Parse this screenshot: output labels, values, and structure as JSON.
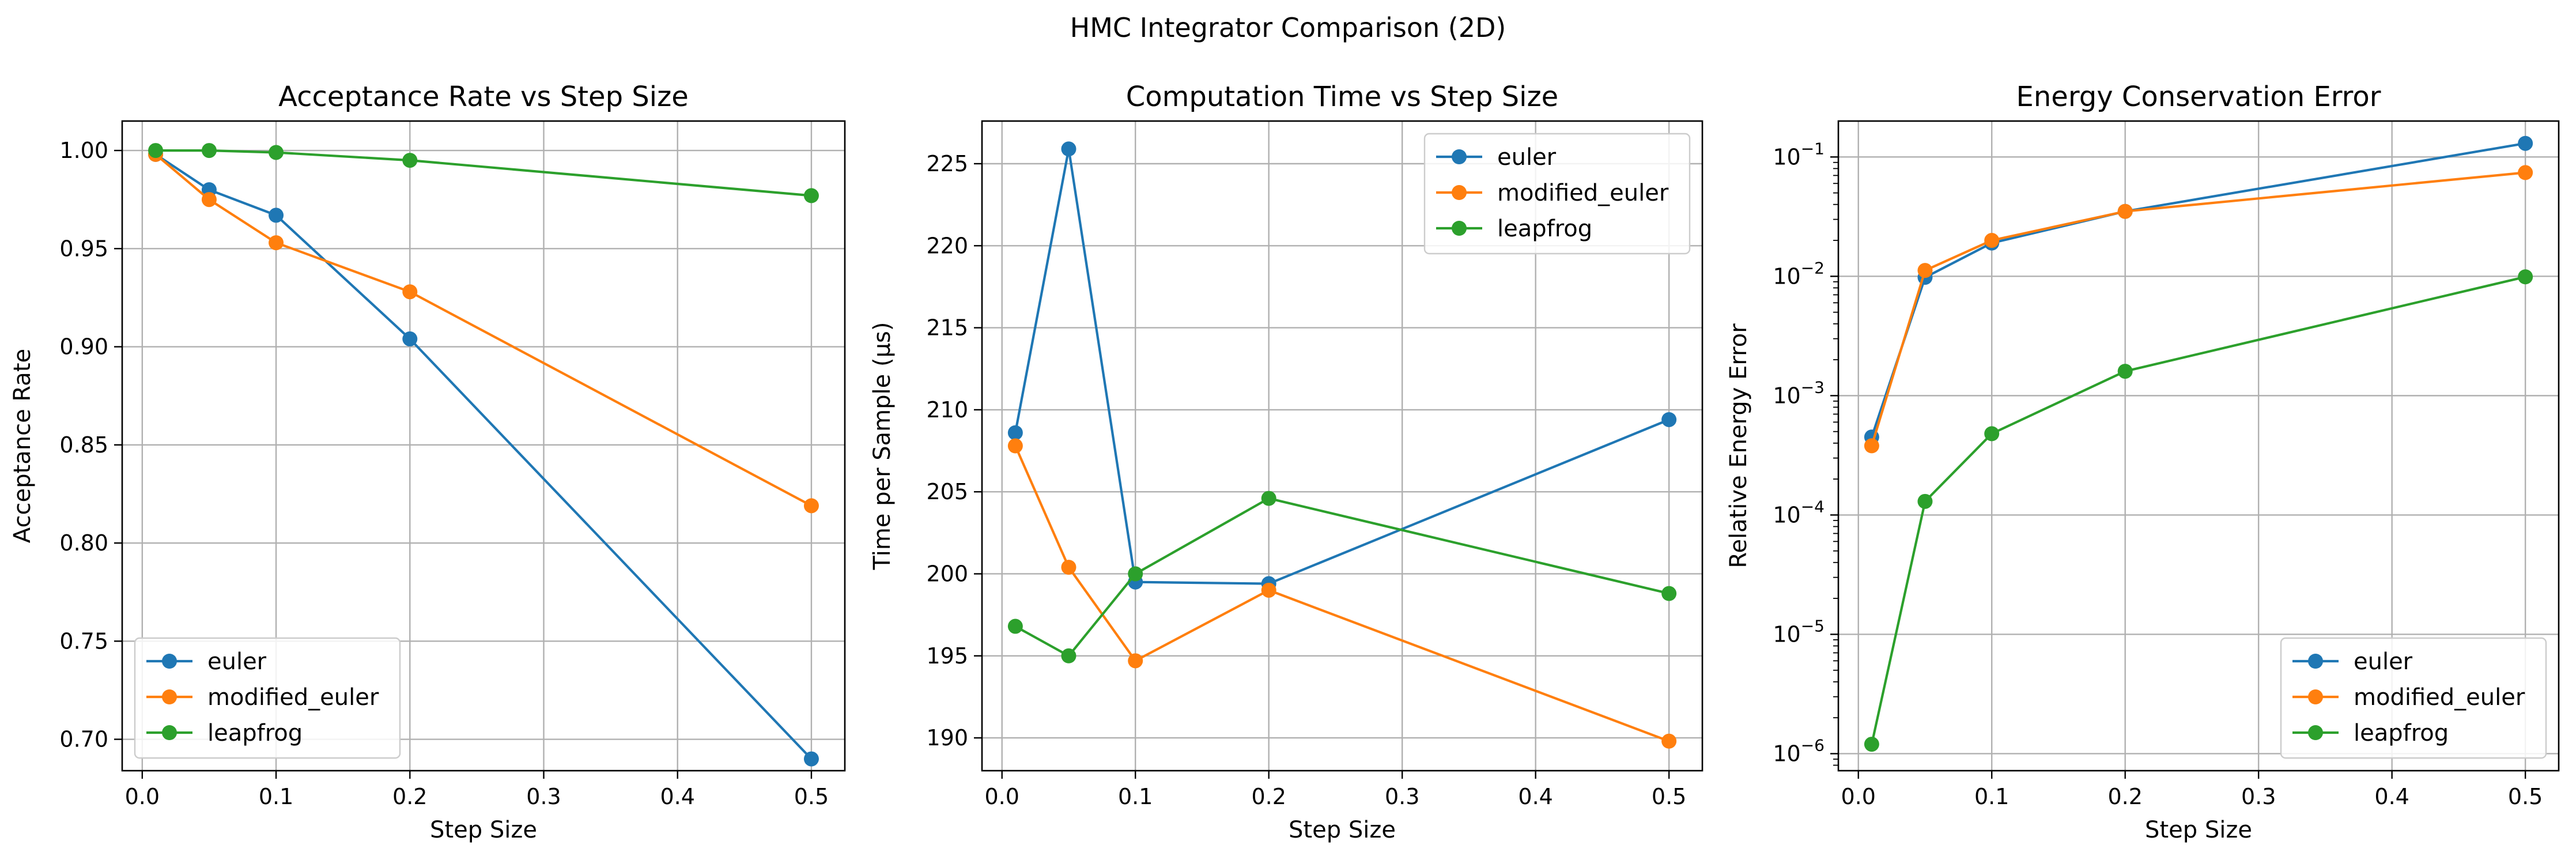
{
  "figure": {
    "suptitle": "HMC Integrator Comparison (2D)"
  },
  "colors": {
    "euler": "#1f77b4",
    "modified_euler": "#ff7f0e",
    "leapfrog": "#2ca02c"
  },
  "chart_data": [
    {
      "type": "line",
      "title": "Acceptance Rate vs Step Size",
      "xlabel": "Step Size",
      "ylabel": "Acceptance Rate",
      "xlim": [
        -0.015,
        0.525
      ],
      "ylim": [
        0.684,
        1.015
      ],
      "xticks": [
        0.0,
        0.1,
        0.2,
        0.3,
        0.4,
        0.5
      ],
      "xtick_labels": [
        "0.0",
        "0.1",
        "0.2",
        "0.3",
        "0.4",
        "0.5"
      ],
      "yticks": [
        0.7,
        0.75,
        0.8,
        0.85,
        0.9,
        0.95,
        1.0
      ],
      "ytick_labels": [
        "0.70",
        "0.75",
        "0.80",
        "0.85",
        "0.90",
        "0.95",
        "1.00"
      ],
      "yscale": "linear",
      "grid": true,
      "legend_loc": "lower-left",
      "x": [
        0.01,
        0.05,
        0.1,
        0.2,
        0.5
      ],
      "series": [
        {
          "name": "euler",
          "values": [
            0.998,
            0.98,
            0.967,
            0.904,
            0.69
          ]
        },
        {
          "name": "modified_euler",
          "values": [
            0.998,
            0.975,
            0.953,
            0.928,
            0.819
          ]
        },
        {
          "name": "leapfrog",
          "values": [
            1.0,
            1.0,
            0.999,
            0.995,
            0.977
          ]
        }
      ]
    },
    {
      "type": "line",
      "title": "Computation Time vs Step Size",
      "xlabel": "Step Size",
      "ylabel": "Time per Sample (μs)",
      "xlim": [
        -0.015,
        0.525
      ],
      "ylim": [
        188.0,
        227.6
      ],
      "xticks": [
        0.0,
        0.1,
        0.2,
        0.3,
        0.4,
        0.5
      ],
      "xtick_labels": [
        "0.0",
        "0.1",
        "0.2",
        "0.3",
        "0.4",
        "0.5"
      ],
      "yticks": [
        190,
        195,
        200,
        205,
        210,
        215,
        220,
        225
      ],
      "ytick_labels": [
        "190",
        "195",
        "200",
        "205",
        "210",
        "215",
        "220",
        "225"
      ],
      "yscale": "linear",
      "grid": true,
      "legend_loc": "upper-right",
      "x": [
        0.01,
        0.05,
        0.1,
        0.2,
        0.5
      ],
      "series": [
        {
          "name": "euler",
          "values": [
            208.6,
            225.9,
            199.5,
            199.4,
            209.4
          ]
        },
        {
          "name": "modified_euler",
          "values": [
            207.8,
            200.4,
            194.7,
            199.0,
            189.8
          ]
        },
        {
          "name": "leapfrog",
          "values": [
            196.8,
            195.0,
            200.0,
            204.6,
            198.8
          ]
        }
      ]
    },
    {
      "type": "line",
      "title": "Energy Conservation Error",
      "xlabel": "Step Size",
      "ylabel": "Relative Energy Error",
      "xlim": [
        -0.015,
        0.525
      ],
      "ylim": [
        7.2e-07,
        0.2
      ],
      "xticks": [
        0.0,
        0.1,
        0.2,
        0.3,
        0.4,
        0.5
      ],
      "xtick_labels": [
        "0.0",
        "0.1",
        "0.2",
        "0.3",
        "0.4",
        "0.5"
      ],
      "yticks": [
        1e-06,
        1e-05,
        0.0001,
        0.001,
        0.01,
        0.1
      ],
      "ytick_labels": [
        {
          "base": "10",
          "exp": "−6"
        },
        {
          "base": "10",
          "exp": "−5"
        },
        {
          "base": "10",
          "exp": "−4"
        },
        {
          "base": "10",
          "exp": "−3"
        },
        {
          "base": "10",
          "exp": "−2"
        },
        {
          "base": "10",
          "exp": "−1"
        }
      ],
      "yscale": "log",
      "grid": true,
      "legend_loc": "lower-right",
      "x": [
        0.01,
        0.05,
        0.1,
        0.2,
        0.5
      ],
      "series": [
        {
          "name": "euler",
          "values": [
            0.00045,
            0.0098,
            0.019,
            0.035,
            0.13
          ]
        },
        {
          "name": "modified_euler",
          "values": [
            0.00038,
            0.0112,
            0.02,
            0.035,
            0.074
          ]
        },
        {
          "name": "leapfrog",
          "values": [
            1.2e-06,
            0.00013,
            0.00048,
            0.0016,
            0.0099
          ]
        }
      ]
    }
  ]
}
